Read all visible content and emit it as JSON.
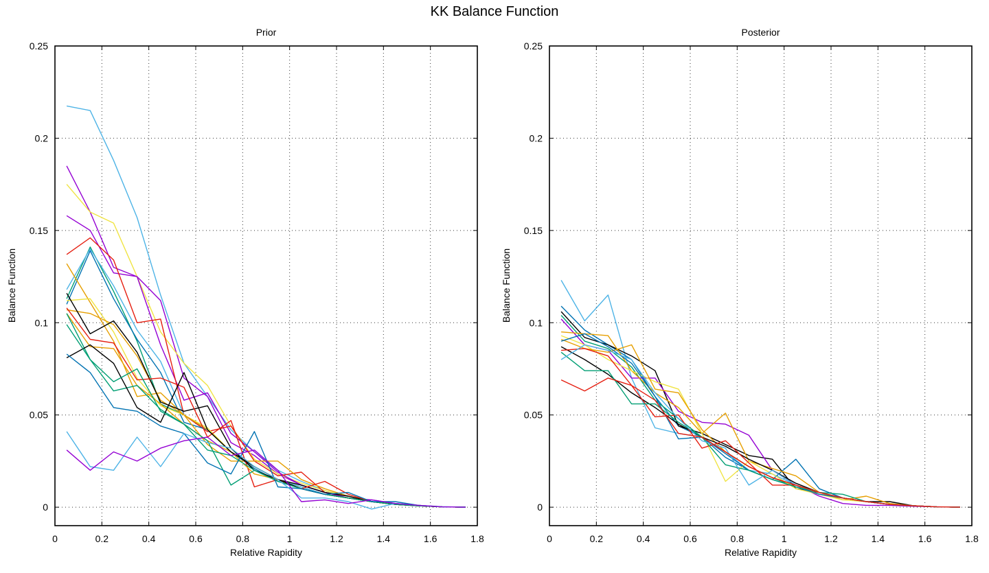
{
  "figure": {
    "title": "KK Balance Function"
  },
  "chart_data": [
    {
      "type": "line",
      "title": "Prior",
      "xlabel": "Relative Rapidity",
      "ylabel": "Balance Function",
      "xlim": [
        0,
        1.8
      ],
      "ylim": [
        -0.01,
        0.25
      ],
      "x_ticks": [
        "0",
        "0.2",
        "0.4",
        "0.6",
        "0.8",
        "1",
        "1.2",
        "1.4",
        "1.6",
        "1.8"
      ],
      "y_ticks": [
        "0",
        "0.05",
        "0.1",
        "0.15",
        "0.2",
        "0.25"
      ],
      "grid": true,
      "legend": "none",
      "x": [
        0.05,
        0.15,
        0.25,
        0.35,
        0.45,
        0.55,
        0.65,
        0.75,
        0.85,
        0.95,
        1.05,
        1.15,
        1.25,
        1.35,
        1.45,
        1.55,
        1.65,
        1.75
      ],
      "series": [
        {
          "color": "#4db3e6",
          "values": [
            0.2175,
            0.215,
            0.188,
            0.157,
            0.115,
            0.078,
            0.06,
            0.042,
            0.03,
            0.02,
            0.014,
            0.009,
            0.006,
            0.003,
            0.002,
            0.001,
            0.0003,
            0.0
          ]
        },
        {
          "color": "#9400d3",
          "values": [
            0.185,
            0.16,
            0.13,
            0.125,
            0.112,
            0.07,
            0.06,
            0.035,
            0.028,
            0.018,
            0.012,
            0.008,
            0.005,
            0.003,
            0.0015,
            0.0008,
            0.0002,
            0.0
          ]
        },
        {
          "color": "#f0e442",
          "values": [
            0.175,
            0.16,
            0.154,
            0.125,
            0.095,
            0.078,
            0.066,
            0.044,
            0.026,
            0.018,
            0.013,
            0.009,
            0.006,
            0.003,
            0.0015,
            0.0008,
            0.0002,
            0.0
          ]
        },
        {
          "color": "#9400d3",
          "values": [
            0.158,
            0.15,
            0.127,
            0.125,
            0.088,
            0.058,
            0.062,
            0.04,
            0.03,
            0.019,
            0.012,
            0.008,
            0.005,
            0.004,
            0.002,
            0.001,
            0.0002,
            0.0
          ]
        },
        {
          "color": "#e51e10",
          "values": [
            0.137,
            0.146,
            0.134,
            0.1,
            0.102,
            0.05,
            0.041,
            0.044,
            0.025,
            0.017,
            0.019,
            0.008,
            0.006,
            0.003,
            0.0015,
            0.0008,
            0.0002,
            0.0
          ]
        },
        {
          "color": "#009e73",
          "values": [
            0.113,
            0.141,
            0.117,
            0.09,
            0.056,
            0.05,
            0.042,
            0.03,
            0.022,
            0.015,
            0.011,
            0.007,
            0.005,
            0.003,
            0.0015,
            0.0008,
            0.0002,
            0.0
          ]
        },
        {
          "color": "#4db3e6",
          "values": [
            0.118,
            0.14,
            0.12,
            0.096,
            0.079,
            0.05,
            0.042,
            0.03,
            0.022,
            0.015,
            0.011,
            0.007,
            0.005,
            0.003,
            0.0015,
            0.0008,
            0.0002,
            0.0
          ]
        },
        {
          "color": "#0072b2",
          "values": [
            0.11,
            0.139,
            0.113,
            0.091,
            0.073,
            0.046,
            0.042,
            0.03,
            0.021,
            0.014,
            0.01,
            0.007,
            0.005,
            0.003,
            0.0015,
            0.0008,
            0.0002,
            0.0
          ]
        },
        {
          "color": "#e69f00",
          "values": [
            0.132,
            0.111,
            0.09,
            0.06,
            0.062,
            0.05,
            0.034,
            0.025,
            0.025,
            0.025,
            0.015,
            0.01,
            0.006,
            0.003,
            0.0015,
            0.0008,
            0.0002,
            0.0
          ]
        },
        {
          "color": "#f0e442",
          "values": [
            0.112,
            0.113,
            0.095,
            0.07,
            0.055,
            0.05,
            0.043,
            0.03,
            0.022,
            0.015,
            0.01,
            0.007,
            0.005,
            0.003,
            0.0015,
            0.0008,
            0.0002,
            0.0
          ]
        },
        {
          "color": "#e69f00",
          "values": [
            0.107,
            0.105,
            0.099,
            0.082,
            0.058,
            0.05,
            0.042,
            0.03,
            0.022,
            0.015,
            0.01,
            0.007,
            0.005,
            0.003,
            0.0015,
            0.0008,
            0.0002,
            0.0
          ]
        },
        {
          "color": "#000000",
          "values": [
            0.116,
            0.094,
            0.101,
            0.084,
            0.057,
            0.052,
            0.055,
            0.032,
            0.02,
            0.015,
            0.012,
            0.008,
            0.006,
            0.003,
            0.0015,
            0.0008,
            0.0002,
            0.0
          ]
        },
        {
          "color": "#e51e10",
          "values": [
            0.108,
            0.091,
            0.089,
            0.069,
            0.07,
            0.065,
            0.038,
            0.047,
            0.011,
            0.015,
            0.01,
            0.014,
            0.007,
            0.003,
            0.0015,
            0.0008,
            0.0002,
            0.0
          ]
        },
        {
          "color": "#e69f00",
          "values": [
            0.105,
            0.087,
            0.086,
            0.066,
            0.056,
            0.045,
            0.036,
            0.03,
            0.018,
            0.015,
            0.01,
            0.007,
            0.005,
            0.003,
            0.0015,
            0.0008,
            0.0002,
            0.0
          ]
        },
        {
          "color": "#009e73",
          "values": [
            0.105,
            0.08,
            0.063,
            0.066,
            0.053,
            0.045,
            0.036,
            0.012,
            0.02,
            0.014,
            0.01,
            0.007,
            0.005,
            0.003,
            0.0015,
            0.0008,
            0.0002,
            0.0
          ]
        },
        {
          "color": "#000000",
          "values": [
            0.081,
            0.088,
            0.078,
            0.054,
            0.046,
            0.073,
            0.042,
            0.03,
            0.022,
            0.015,
            0.01,
            0.007,
            0.005,
            0.003,
            0.0015,
            0.0008,
            0.0002,
            0.0
          ]
        },
        {
          "color": "#009e73",
          "values": [
            0.099,
            0.08,
            0.068,
            0.075,
            0.052,
            0.045,
            0.031,
            0.028,
            0.02,
            0.014,
            0.01,
            0.007,
            0.005,
            0.003,
            0.0015,
            0.0008,
            0.0002,
            0.0
          ]
        },
        {
          "color": "#0072b2",
          "values": [
            0.083,
            0.073,
            0.054,
            0.052,
            0.044,
            0.04,
            0.024,
            0.018,
            0.041,
            0.011,
            0.01,
            0.007,
            0.008,
            0.003,
            0.003,
            0.001,
            0.0002,
            0.0
          ]
        },
        {
          "color": "#4db3e6",
          "values": [
            0.041,
            0.022,
            0.02,
            0.038,
            0.022,
            0.04,
            0.035,
            0.032,
            0.022,
            0.015,
            0.005,
            0.005,
            0.003,
            -0.001,
            0.002,
            0.001,
            0.0002,
            0.0
          ]
        },
        {
          "color": "#9400d3",
          "values": [
            0.031,
            0.02,
            0.03,
            0.025,
            0.032,
            0.036,
            0.038,
            0.028,
            0.031,
            0.02,
            0.003,
            0.004,
            0.002,
            0.004,
            0.002,
            0.001,
            0.0002,
            0.0
          ]
        }
      ]
    },
    {
      "type": "line",
      "title": "Posterior",
      "xlabel": "Relative Rapidity",
      "ylabel": "Balance Function",
      "xlim": [
        0,
        1.8
      ],
      "ylim": [
        -0.01,
        0.25
      ],
      "x_ticks": [
        "0",
        "0.2",
        "0.4",
        "0.6",
        "0.8",
        "1",
        "1.2",
        "1.4",
        "1.6",
        "1.8"
      ],
      "y_ticks": [
        "0",
        "0.05",
        "0.1",
        "0.15",
        "0.2",
        "0.25"
      ],
      "grid": true,
      "legend": "none",
      "x": [
        0.05,
        0.15,
        0.25,
        0.35,
        0.45,
        0.55,
        0.65,
        0.75,
        0.85,
        0.95,
        1.05,
        1.15,
        1.25,
        1.35,
        1.45,
        1.55,
        1.65,
        1.75
      ],
      "series": [
        {
          "color": "#4db3e6",
          "values": [
            0.123,
            0.101,
            0.115,
            0.07,
            0.043,
            0.04,
            0.038,
            0.03,
            0.02,
            0.018,
            0.012,
            0.008,
            0.005,
            0.003,
            0.0015,
            0.0008,
            0.0002,
            0.0
          ]
        },
        {
          "color": "#0072b2",
          "values": [
            0.109,
            0.096,
            0.088,
            0.08,
            0.06,
            0.044,
            0.038,
            0.027,
            0.02,
            0.015,
            0.026,
            0.01,
            0.005,
            0.003,
            0.0015,
            0.0008,
            0.0002,
            0.0
          ]
        },
        {
          "color": "#000000",
          "values": [
            0.106,
            0.092,
            0.088,
            0.082,
            0.074,
            0.044,
            0.04,
            0.034,
            0.028,
            0.026,
            0.01,
            0.008,
            0.005,
            0.003,
            0.003,
            0.0008,
            0.0002,
            0.0
          ]
        },
        {
          "color": "#009e73",
          "values": [
            0.104,
            0.09,
            0.086,
            0.076,
            0.058,
            0.048,
            0.038,
            0.03,
            0.022,
            0.016,
            0.011,
            0.007,
            0.005,
            0.003,
            0.0015,
            0.0008,
            0.0002,
            0.0
          ]
        },
        {
          "color": "#9400d3",
          "values": [
            0.102,
            0.088,
            0.085,
            0.07,
            0.07,
            0.052,
            0.046,
            0.045,
            0.039,
            0.02,
            0.012,
            0.006,
            0.002,
            0.001,
            0.001,
            0.0005,
            0.0002,
            0.0
          ]
        },
        {
          "color": "#e69f00",
          "values": [
            0.095,
            0.094,
            0.093,
            0.074,
            0.062,
            0.054,
            0.04,
            0.051,
            0.025,
            0.021,
            0.017,
            0.008,
            0.004,
            0.006,
            0.002,
            0.0008,
            0.0002,
            0.0
          ]
        },
        {
          "color": "#f0e442",
          "values": [
            0.093,
            0.088,
            0.08,
            0.074,
            0.068,
            0.064,
            0.04,
            0.014,
            0.025,
            0.018,
            0.01,
            0.007,
            0.004,
            0.003,
            0.0015,
            0.0008,
            0.0002,
            0.0
          ]
        },
        {
          "color": "#e69f00",
          "values": [
            0.091,
            0.086,
            0.084,
            0.088,
            0.064,
            0.062,
            0.042,
            0.03,
            0.022,
            0.016,
            0.012,
            0.007,
            0.005,
            0.003,
            0.0015,
            0.0008,
            0.0002,
            0.0
          ]
        },
        {
          "color": "#0072b2",
          "values": [
            0.09,
            0.094,
            0.087,
            0.078,
            0.06,
            0.037,
            0.038,
            0.029,
            0.02,
            0.015,
            0.011,
            0.007,
            0.005,
            0.003,
            0.0015,
            0.0008,
            0.0002,
            0.0
          ]
        },
        {
          "color": "#000000",
          "values": [
            0.087,
            0.08,
            0.072,
            0.062,
            0.054,
            0.045,
            0.038,
            0.033,
            0.026,
            0.02,
            0.013,
            0.008,
            0.005,
            0.003,
            0.0015,
            0.0008,
            0.0002,
            0.0
          ]
        },
        {
          "color": "#e51e10",
          "values": [
            0.085,
            0.086,
            0.082,
            0.066,
            0.049,
            0.05,
            0.032,
            0.036,
            0.024,
            0.012,
            0.012,
            0.008,
            0.005,
            0.003,
            0.0015,
            0.0008,
            0.0002,
            0.0
          ]
        },
        {
          "color": "#009e73",
          "values": [
            0.084,
            0.074,
            0.074,
            0.056,
            0.056,
            0.046,
            0.038,
            0.023,
            0.02,
            0.015,
            0.011,
            0.008,
            0.007,
            0.003,
            0.0015,
            0.0008,
            0.0002,
            0.0
          ]
        },
        {
          "color": "#4db3e6",
          "values": [
            0.08,
            0.088,
            0.085,
            0.08,
            0.062,
            0.048,
            0.036,
            0.032,
            0.012,
            0.02,
            0.012,
            0.008,
            0.005,
            0.003,
            0.0015,
            0.0008,
            0.0002,
            0.0
          ]
        },
        {
          "color": "#e51e10",
          "values": [
            0.069,
            0.063,
            0.07,
            0.066,
            0.058,
            0.04,
            0.038,
            0.03,
            0.022,
            0.016,
            0.012,
            0.008,
            0.005,
            0.003,
            0.0015,
            0.0008,
            0.0002,
            0.0
          ]
        }
      ]
    }
  ]
}
